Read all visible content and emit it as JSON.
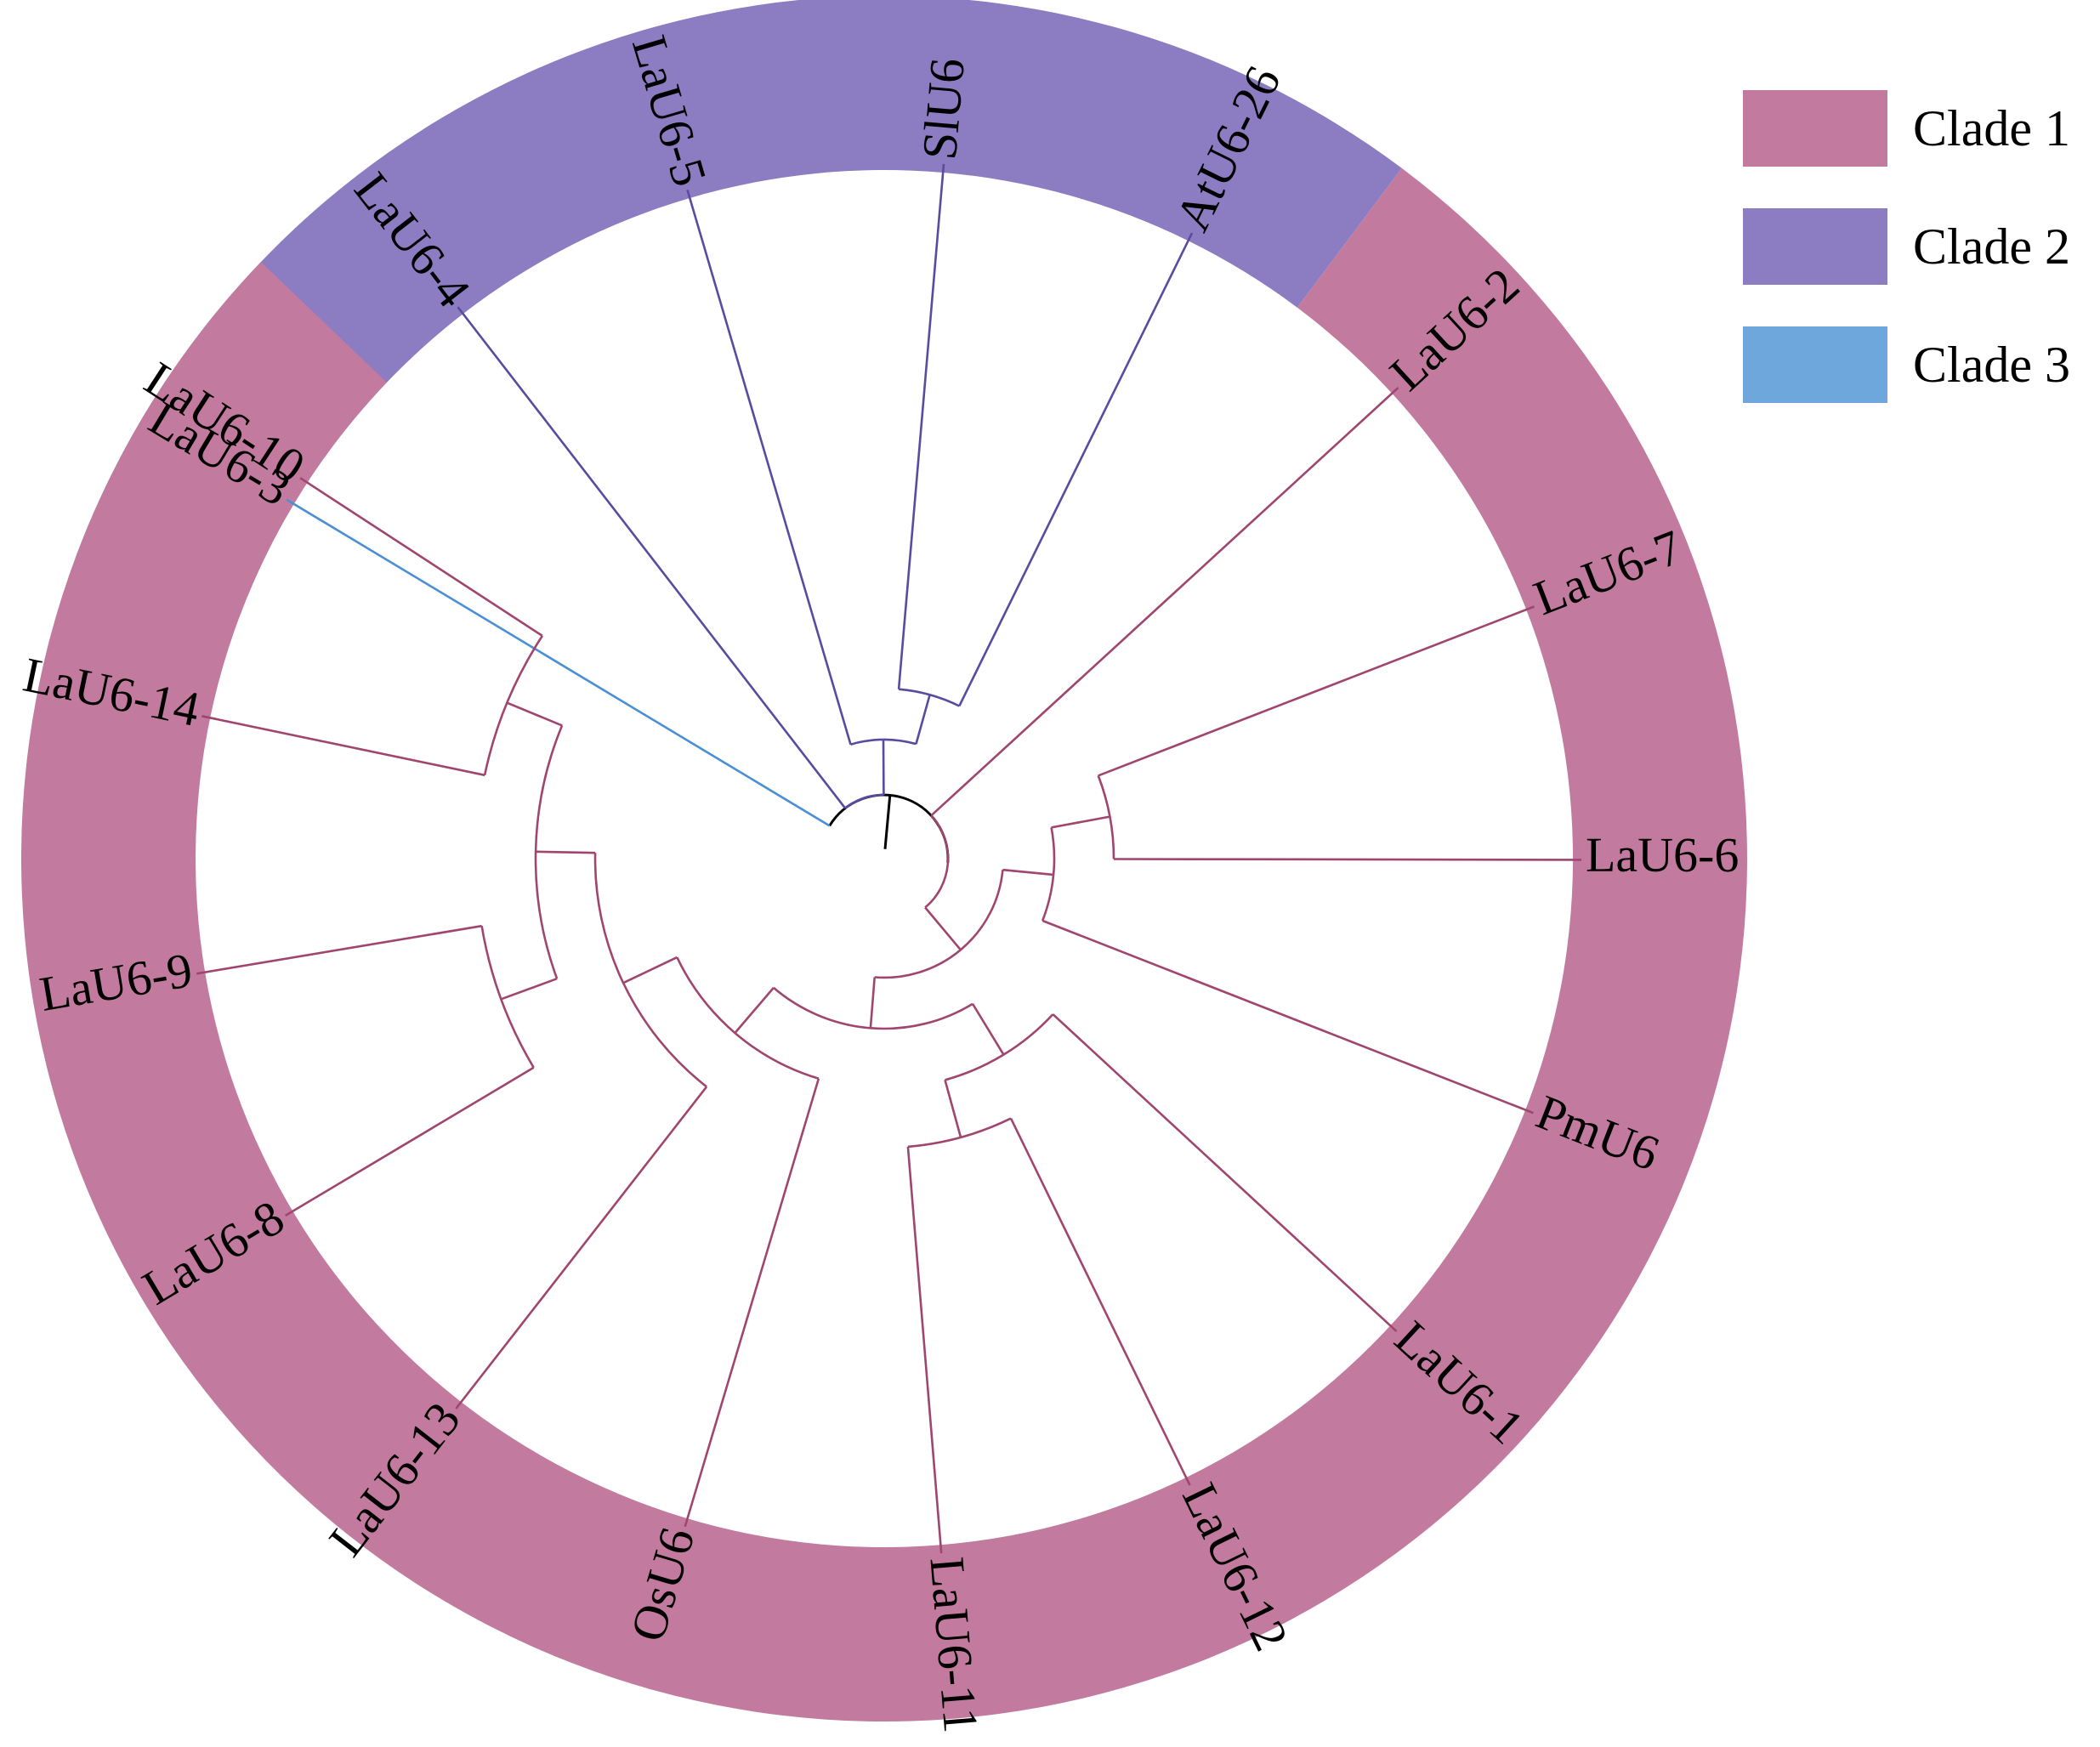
{
  "legend": [
    {
      "label": "Clade 1",
      "color": "#c27b9f"
    },
    {
      "label": "Clade 2",
      "color": "#8c7cc1"
    },
    {
      "label": "Clade 3",
      "color": "#6ea7dc"
    }
  ],
  "branch_colors": {
    "root": "#000000",
    "clade1": "#a0466e",
    "clade2": "#5a4aa0",
    "clade3": "#4a8fd6"
  },
  "leaves": [
    {
      "name": "LaU6-3",
      "clade": 3
    },
    {
      "name": "LaU6-4",
      "clade": 2
    },
    {
      "name": "LaU6-5",
      "clade": 2
    },
    {
      "name": "SlU6",
      "clade": 2
    },
    {
      "name": "AtU6-26",
      "clade": 2
    },
    {
      "name": "LaU6-2",
      "clade": 1
    },
    {
      "name": "LaU6-7",
      "clade": 1
    },
    {
      "name": "LaU6-6",
      "clade": 1
    },
    {
      "name": "PmU6",
      "clade": 1
    },
    {
      "name": "LaU6-1",
      "clade": 1
    },
    {
      "name": "LaU6-12",
      "clade": 1
    },
    {
      "name": "LaU6-11",
      "clade": 1
    },
    {
      "name": "OsU6",
      "clade": 1
    },
    {
      "name": "LaU6-13",
      "clade": 1
    },
    {
      "name": "LaU6-8",
      "clade": 1
    },
    {
      "name": "LaU6-9",
      "clade": 1
    },
    {
      "name": "LaU6-14",
      "clade": 1
    },
    {
      "name": "LaU6-10",
      "clade": 1
    }
  ],
  "tree": {
    "children": [
      {
        "leaf": "LaU6-3"
      },
      {
        "children": [
          {
            "leaf": "LaU6-4"
          },
          {
            "children": [
              {
                "leaf": "LaU6-5"
              },
              {
                "children": [
                  {
                    "leaf": "SlU6"
                  },
                  {
                    "leaf": "AtU6-26"
                  }
                ]
              }
            ]
          }
        ]
      },
      {
        "children": [
          {
            "leaf": "LaU6-2"
          },
          {
            "children": [
              {
                "children": [
                  {
                    "children": [
                      {
                        "leaf": "LaU6-7"
                      },
                      {
                        "leaf": "LaU6-6"
                      }
                    ]
                  },
                  {
                    "leaf": "PmU6"
                  }
                ]
              },
              {
                "children": [
                  {
                    "children": [
                      {
                        "leaf": "LaU6-1"
                      },
                      {
                        "children": [
                          {
                            "leaf": "LaU6-12"
                          },
                          {
                            "leaf": "LaU6-11"
                          }
                        ]
                      }
                    ]
                  },
                  {
                    "children": [
                      {
                        "leaf": "OsU6"
                      },
                      {
                        "children": [
                          {
                            "leaf": "LaU6-13"
                          },
                          {
                            "children": [
                              {
                                "children": [
                                  {
                                    "leaf": "LaU6-8"
                                  },
                                  {
                                    "leaf": "LaU6-9"
                                  }
                                ]
                              },
                              {
                                "children": [
                                  {
                                    "leaf": "LaU6-14"
                                  },
                                  {
                                    "leaf": "LaU6-10"
                                  }
                                ]
                              }
                            ]
                          }
                        ]
                      }
                    ]
                  }
                ]
              }
            ]
          }
        ]
      }
    ]
  }
}
